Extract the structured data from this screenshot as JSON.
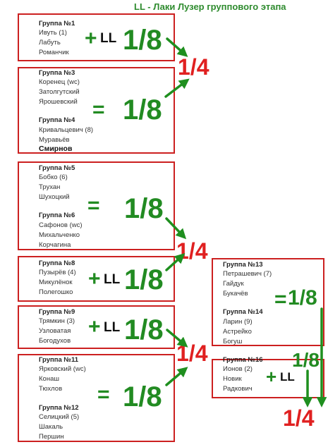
{
  "title": "LL - Лаки Лузер группового этапа",
  "labels": {
    "plus": "+",
    "equals": "=",
    "ll": "LL",
    "eighth": "1/8",
    "quarter": "1/4"
  },
  "groups": {
    "g1": {
      "title": "Группа №1",
      "players": [
        "Ивуть (1)",
        "Лабуть",
        "Романчик"
      ]
    },
    "g3": {
      "title": "Группа №3",
      "players": [
        "Коренец (wc)",
        "Затолгутский",
        "Ярошевский"
      ]
    },
    "g4": {
      "title": "Группа №4",
      "players": [
        "Кривальцевич (8)",
        "Муравьёв",
        "Смирнов"
      ]
    },
    "g5": {
      "title": "Группа №5",
      "players": [
        "Бобко (6)",
        "Трухан",
        "Шухоцкий"
      ]
    },
    "g6": {
      "title": "Группа №6",
      "players": [
        "Сафонов (wc)",
        "Михальченко",
        "Корчагина"
      ]
    },
    "g8": {
      "title": "Группа №8",
      "players": [
        "Пузырёв (4)",
        "Микулёнок",
        "Полегошко"
      ]
    },
    "g9": {
      "title": "Группа №9",
      "players": [
        "Трямкин (3)",
        "Узловатая",
        "Богодухов"
      ]
    },
    "g11": {
      "title": "Группа №11",
      "players": [
        "Ярковский (wc)",
        "Конаш",
        "Тюхлов"
      ]
    },
    "g12": {
      "title": "Группа №12",
      "players": [
        "Селицкий (5)",
        "Шакаль",
        "Першин"
      ]
    },
    "g13": {
      "title": "Группа №13",
      "players": [
        "Петрашевич (7)",
        "Гайдук",
        "Букачёв"
      ]
    },
    "g14": {
      "title": "Группа №14",
      "players": [
        "Ларин (9)",
        "Астрейко",
        "Богуш"
      ]
    },
    "g16": {
      "title": "Группа №16",
      "players": [
        "Ионов (2)",
        "Новик",
        "Радкович"
      ]
    }
  },
  "colors": {
    "box_border": "#cc2020",
    "eighth_green": "#228b22",
    "quarter_red": "#e02020",
    "arrow_green": "#1f8f1f"
  }
}
